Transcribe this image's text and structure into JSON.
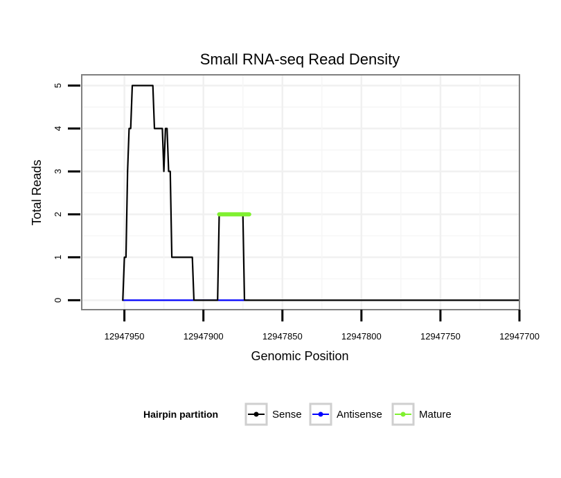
{
  "chart_data": {
    "type": "line",
    "title": "Small RNA-seq Read Density",
    "xlabel": "Genomic Position",
    "ylabel": "Total Reads",
    "x_reversed": true,
    "xlim": [
      12947977,
      12947700
    ],
    "ylim": [
      -0.22,
      5.25
    ],
    "x_ticks": [
      12947950,
      12947900,
      12947850,
      12947800,
      12947750,
      12947700
    ],
    "x_tick_labels": [
      "12947950",
      "12947900",
      "12947850",
      "12947800",
      "12947750",
      "12947700"
    ],
    "y_ticks": [
      0,
      1,
      2,
      3,
      4,
      5
    ],
    "y_tick_labels": [
      "0",
      "1",
      "2",
      "3",
      "4",
      "5"
    ],
    "grid": true,
    "legend": {
      "title": "Hairpin partition",
      "placement": "bottom"
    },
    "series": [
      {
        "name": "Sense",
        "color": "#000000",
        "x": [
          12947951,
          12947950,
          12947949,
          12947948,
          12947947,
          12947946,
          12947945,
          12947944,
          12947943,
          12947942,
          12947941,
          12947940,
          12947932,
          12947931,
          12947926,
          12947925,
          12947924,
          12947923,
          12947922,
          12947921,
          12947920,
          12947907,
          12947906,
          12947905,
          12947891,
          12947890,
          12947875,
          12947874,
          12947871,
          12947700
        ],
        "values": [
          0,
          1,
          1,
          3,
          4,
          4,
          5,
          5,
          5,
          5,
          5,
          5,
          5,
          4,
          4,
          3,
          4,
          4,
          3,
          3,
          1,
          1,
          0,
          0,
          0,
          2,
          2,
          0,
          0,
          0
        ]
      },
      {
        "name": "Antisense",
        "color": "#0000ff",
        "x": [
          12947951,
          12947871
        ],
        "values": [
          0,
          0
        ]
      },
      {
        "name": "Mature",
        "color": "#80f030",
        "x": [
          12947890,
          12947871
        ],
        "values": [
          2,
          2
        ]
      }
    ]
  }
}
